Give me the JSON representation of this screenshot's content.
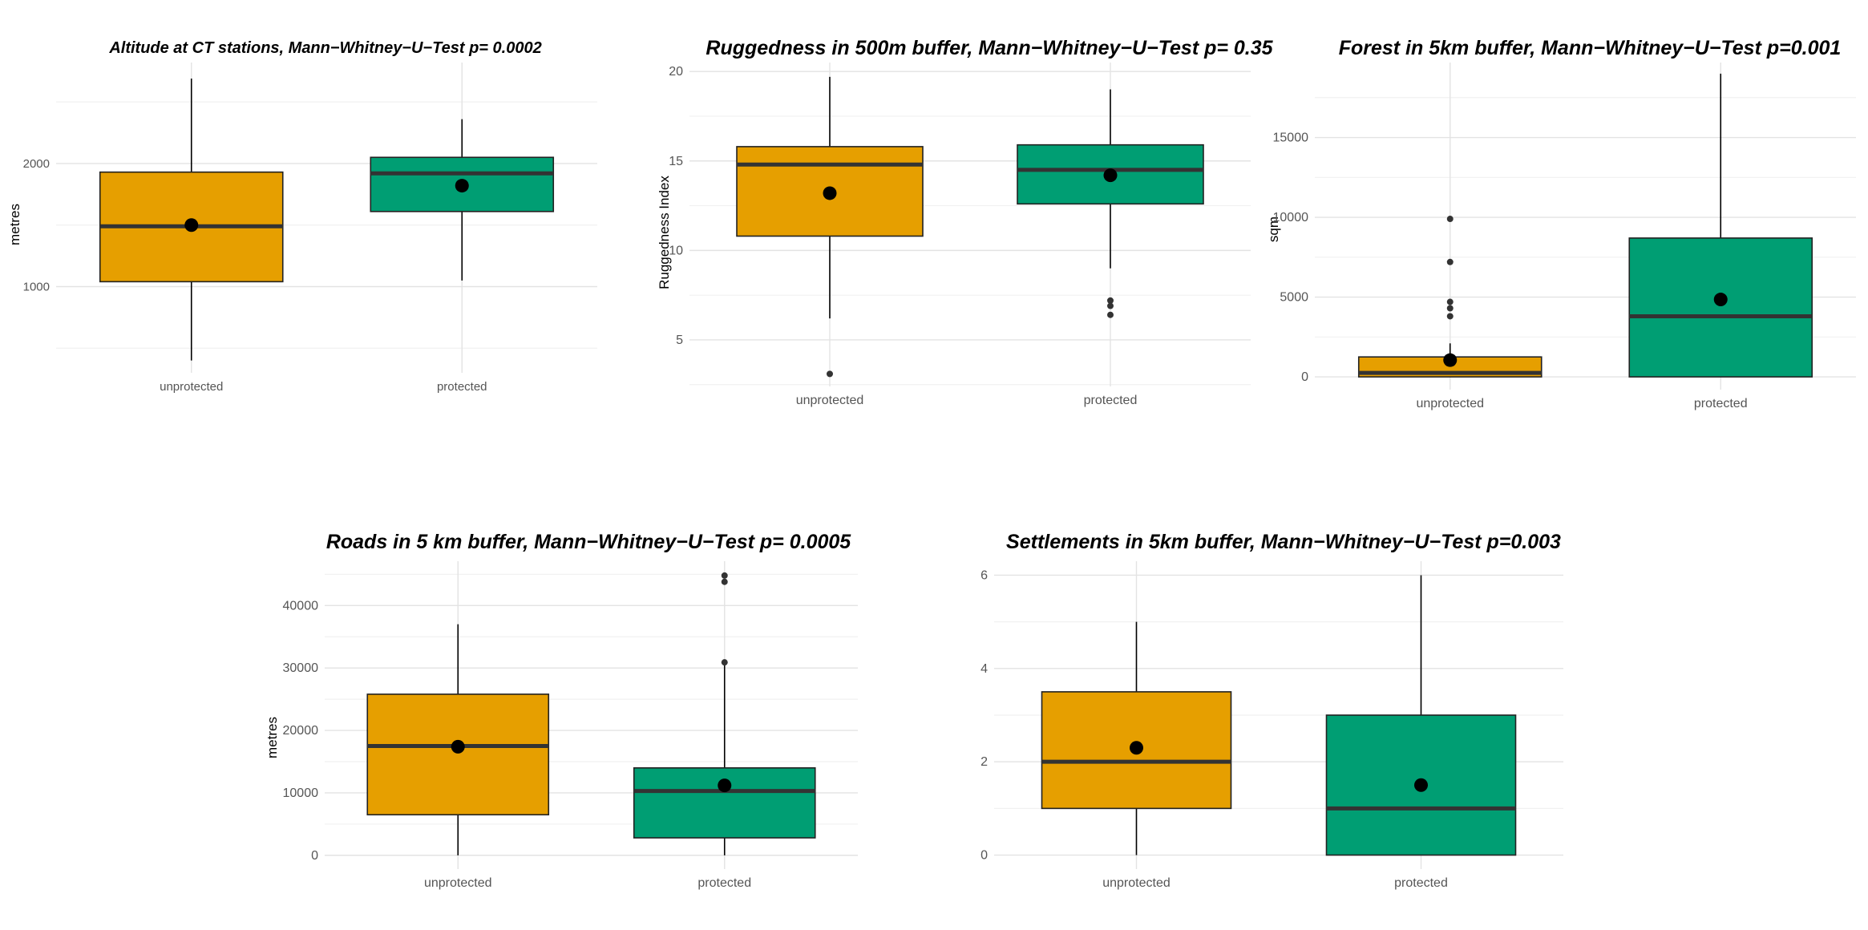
{
  "colors": {
    "unprotected": "#E69F00",
    "protected": "#009E73",
    "grid_major": "#e3e3e3",
    "grid_minor": "#f1f1f1",
    "median": "#333333",
    "mean": "#000000",
    "outlier": "#333333"
  },
  "chart_data": [
    {
      "type": "boxplot",
      "title": "Altitude at CT stations, Mann−Whitney−U−Test p= 0.0002",
      "xlabel": "",
      "ylabel": "metres",
      "categories": [
        "unprotected",
        "protected"
      ],
      "ylim": [
        300,
        2820
      ],
      "yticks": [
        1000,
        2000
      ],
      "boxes": [
        {
          "category": "unprotected",
          "whisker_low": 400,
          "q1": 1040,
          "median": 1490,
          "q3": 1930,
          "whisker_high": 2690,
          "mean": 1500,
          "outliers": []
        },
        {
          "category": "protected",
          "whisker_low": 1050,
          "q1": 1610,
          "median": 1920,
          "q3": 2050,
          "whisker_high": 2360,
          "mean": 1820,
          "outliers": []
        }
      ]
    },
    {
      "type": "boxplot",
      "title": "Ruggedness in 500m buffer, Mann−Whitney−U−Test p= 0.35",
      "xlabel": "",
      "ylabel": "Ruggedness Index",
      "categories": [
        "unprotected",
        "protected"
      ],
      "ylim": [
        2.4,
        20.5
      ],
      "yticks": [
        5,
        10,
        15,
        20
      ],
      "boxes": [
        {
          "category": "unprotected",
          "whisker_low": 6.2,
          "q1": 10.8,
          "median": 14.8,
          "q3": 15.8,
          "whisker_high": 19.7,
          "mean": 13.2,
          "outliers": [
            3.1
          ]
        },
        {
          "category": "protected",
          "whisker_low": 9.0,
          "q1": 12.6,
          "median": 14.5,
          "q3": 15.9,
          "whisker_high": 19.0,
          "mean": 14.2,
          "outliers": [
            7.2,
            6.9,
            6.4
          ]
        }
      ]
    },
    {
      "type": "boxplot",
      "title": "Forest in 5km buffer, Mann−Whitney−U−Test p=0.001",
      "xlabel": "",
      "ylabel": "sqm",
      "categories": [
        "unprotected",
        "protected"
      ],
      "ylim": [
        -800,
        19700
      ],
      "yticks": [
        0,
        5000,
        10000,
        15000
      ],
      "boxes": [
        {
          "category": "unprotected",
          "whisker_low": 0,
          "q1": 0,
          "median": 250,
          "q3": 1250,
          "whisker_high": 2100,
          "mean": 1050,
          "outliers": [
            9900,
            7200,
            4700,
            4300,
            3800
          ]
        },
        {
          "category": "protected",
          "whisker_low": 0,
          "q1": 0,
          "median": 3800,
          "q3": 8700,
          "whisker_high": 19000,
          "mean": 4850,
          "outliers": []
        }
      ]
    },
    {
      "type": "boxplot",
      "title": "Roads in 5 km buffer, Mann−Whitney−U−Test p= 0.0005",
      "xlabel": "",
      "ylabel": "metres",
      "categories": [
        "unprotected",
        "protected"
      ],
      "ylim": [
        -2200,
        47100
      ],
      "yticks": [
        0,
        10000,
        20000,
        30000,
        40000
      ],
      "boxes": [
        {
          "category": "unprotected",
          "whisker_low": 0,
          "q1": 6500,
          "median": 17500,
          "q3": 25800,
          "whisker_high": 37000,
          "mean": 17400,
          "outliers": []
        },
        {
          "category": "protected",
          "whisker_low": 0,
          "q1": 2800,
          "median": 10300,
          "q3": 14000,
          "whisker_high": 31000,
          "mean": 11200,
          "outliers": [
            44800,
            43800,
            30900
          ]
        }
      ]
    },
    {
      "type": "boxplot",
      "title": "Settlements in 5km buffer, Mann−Whitney−U−Test p=0.003",
      "xlabel": "",
      "ylabel": "",
      "categories": [
        "unprotected",
        "protected"
      ],
      "ylim": [
        -0.3,
        6.3
      ],
      "yticks": [
        0,
        2,
        4,
        6
      ],
      "boxes": [
        {
          "category": "unprotected",
          "whisker_low": 0,
          "q1": 1,
          "median": 2,
          "q3": 3.5,
          "whisker_high": 5,
          "mean": 2.3,
          "outliers": []
        },
        {
          "category": "protected",
          "whisker_low": 0,
          "q1": 0,
          "median": 1,
          "q3": 3,
          "whisker_high": 6,
          "mean": 1.5,
          "outliers": []
        }
      ]
    }
  ]
}
